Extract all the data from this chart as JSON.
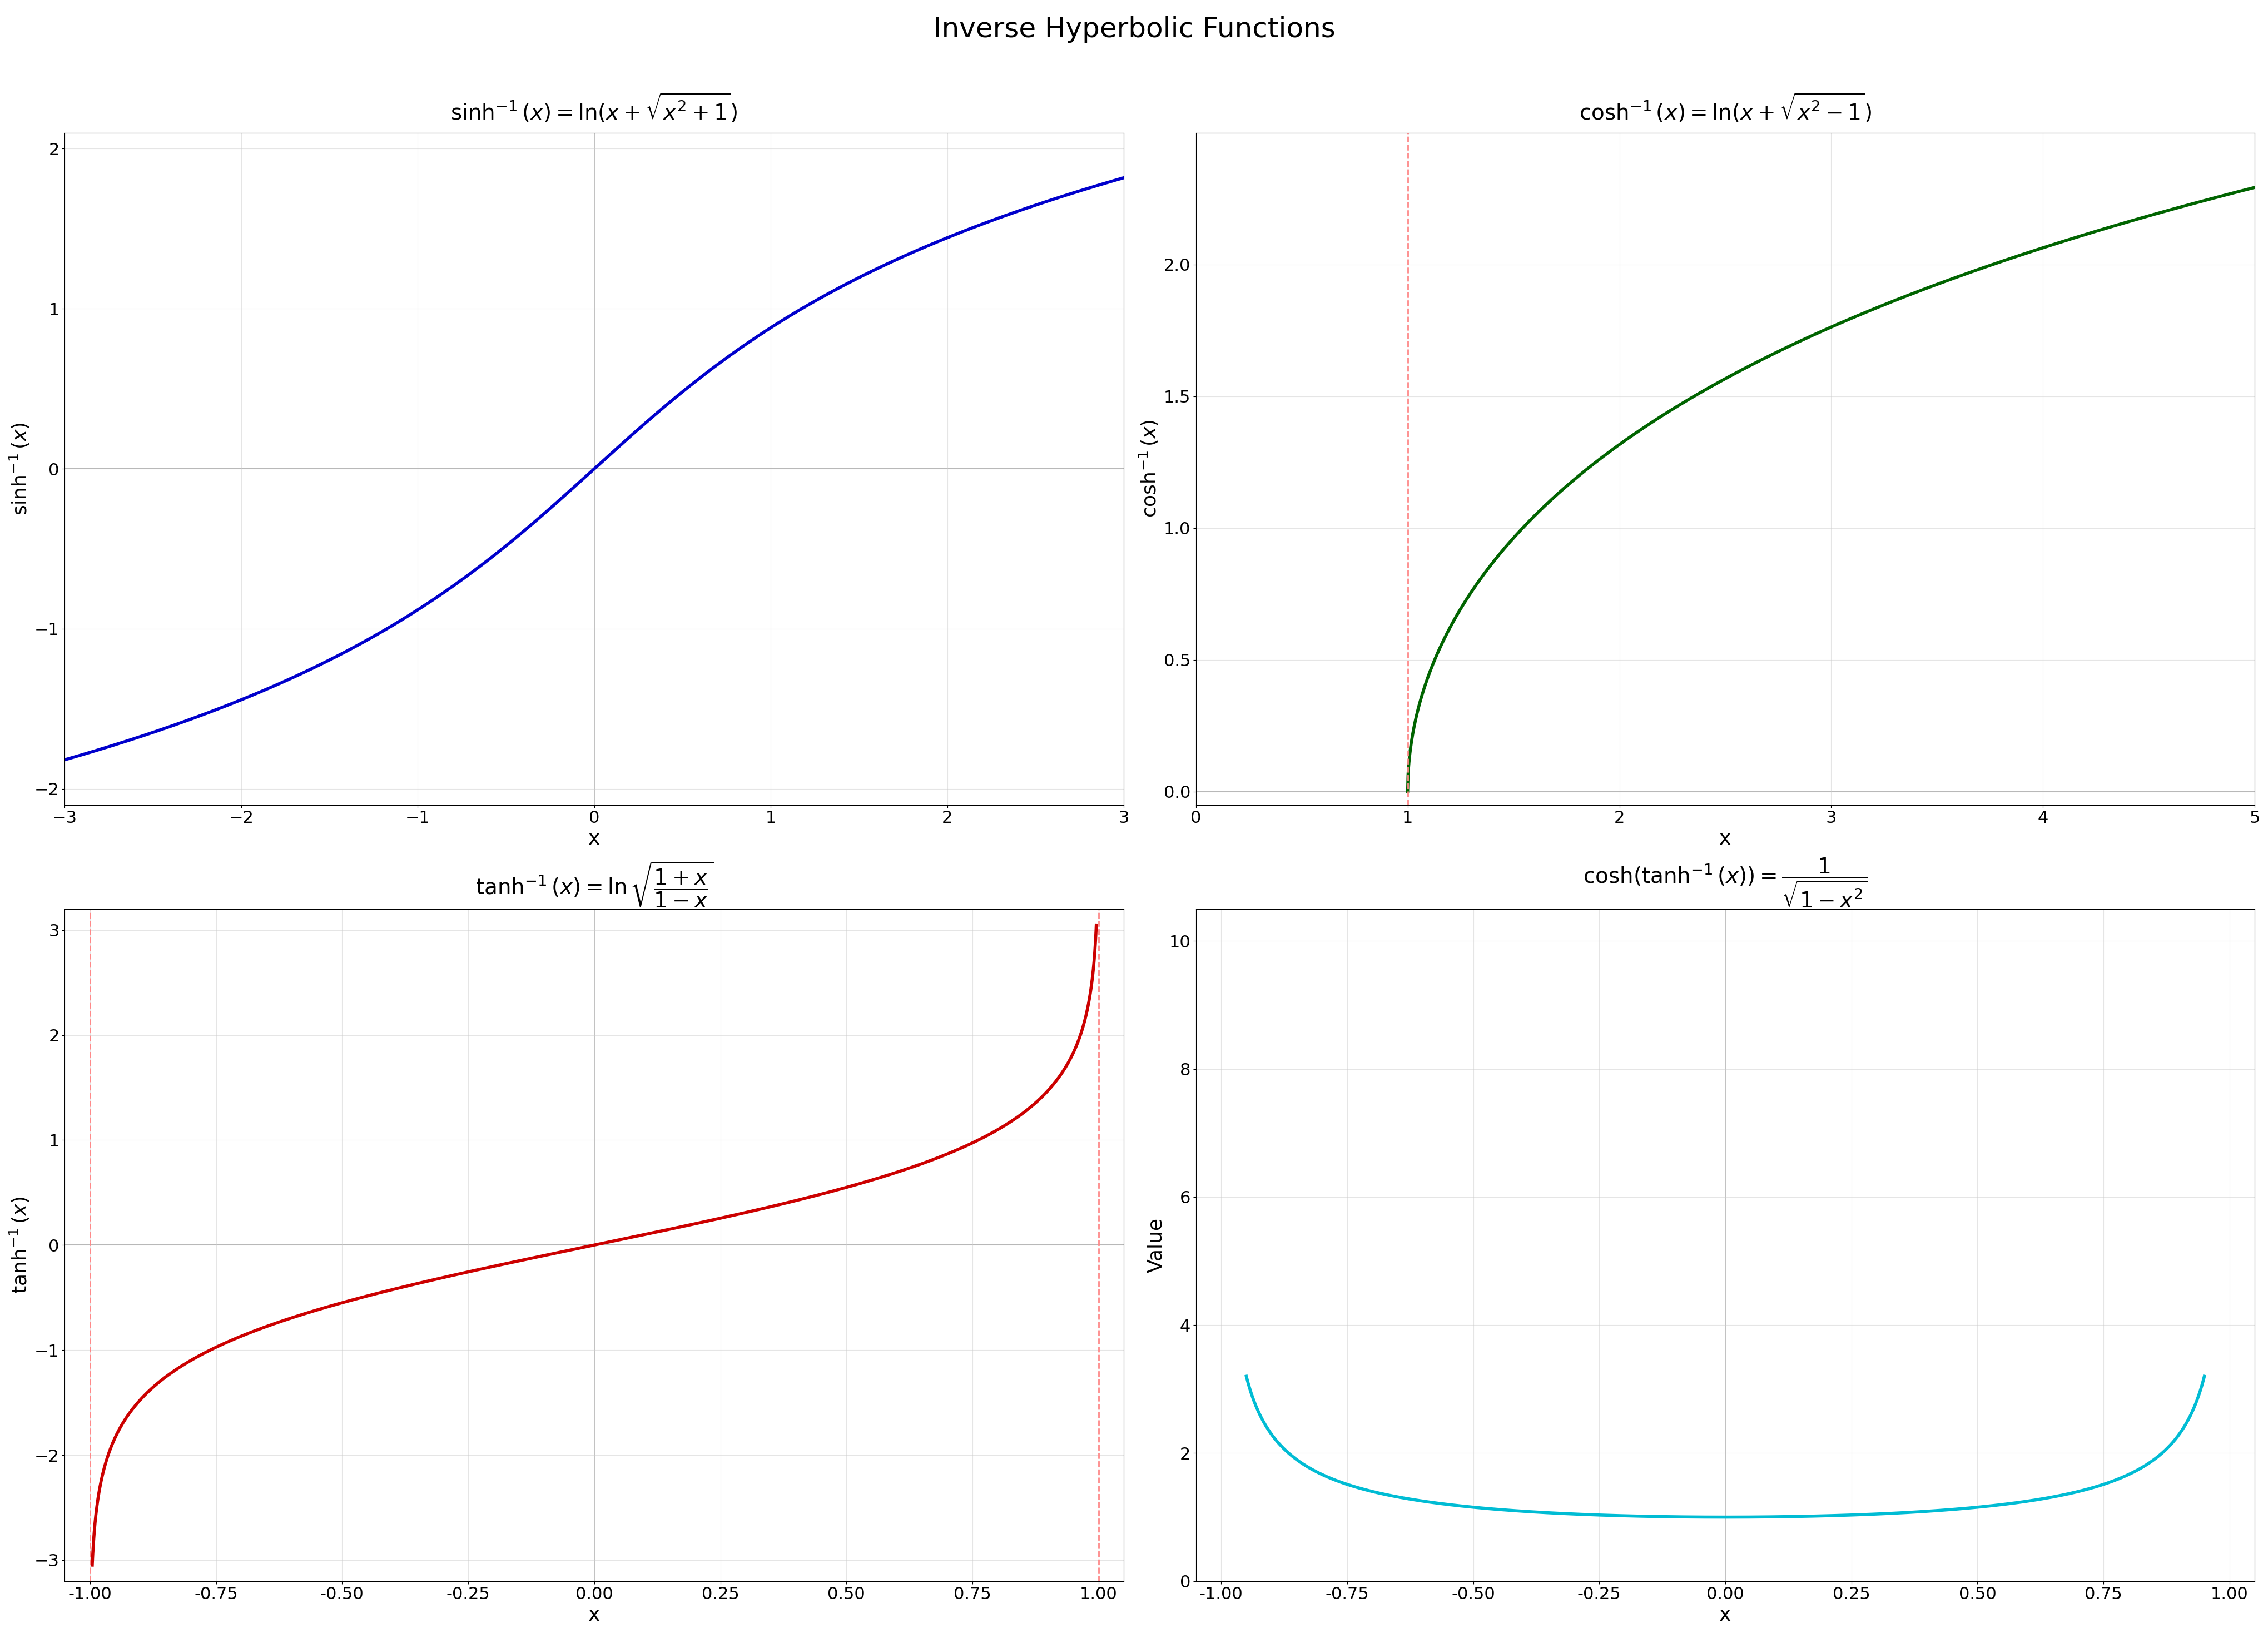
{
  "title": "Inverse Hyperbolic Functions",
  "title_fontsize": 36,
  "background_color": "#ffffff",
  "subplot_titles": [
    "$\\sinh^{-1}(x) = \\ln(x + \\sqrt{x^2 + 1})$",
    "$\\cosh^{-1}(x) = \\ln(x + \\sqrt{x^2 - 1})$",
    "$\\tanh^{-1}(x) = \\ln\\sqrt{\\dfrac{1+x}{1-x}}$",
    "$\\cosh(\\tanh^{-1}(x)) = \\dfrac{1}{\\sqrt{1-x^2}}$"
  ],
  "subplot_title_fontsize": 28,
  "colors": {
    "sinh": "#0000cc",
    "cosh": "#006400",
    "tanh": "#cc0000",
    "cosh_tanh": "#00bcd4",
    "dashed": "#ff8888",
    "zero_line": "#aaaaaa"
  },
  "line_width": 4.0,
  "dashed_lw": 2.0,
  "grid_alpha": 0.5,
  "grid_color": "#cccccc",
  "tick_fontsize": 22,
  "axis_label_fontsize": 26,
  "ylabel_fontsize": 26
}
